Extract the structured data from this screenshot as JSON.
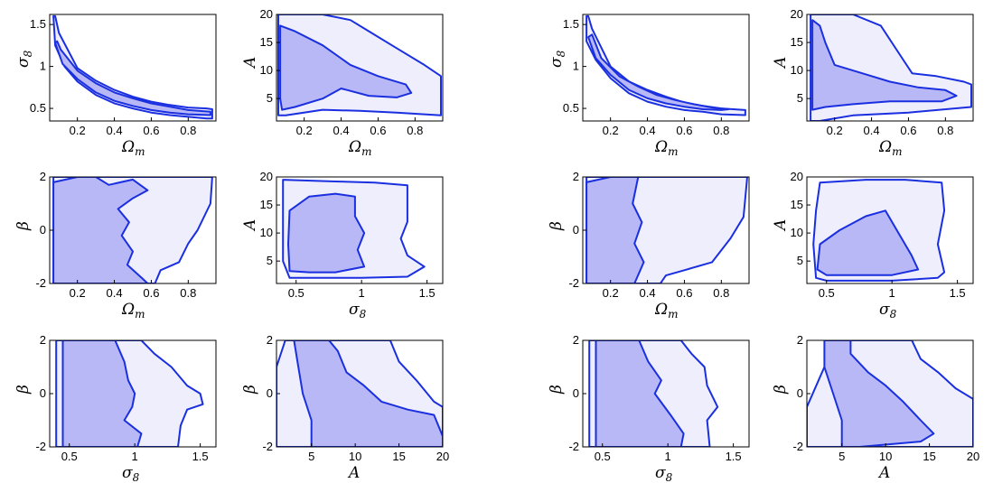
{
  "colors": {
    "outer_fill": "#eeeefc",
    "inner_fill": "#b8b8f6",
    "contour_line": "#1a2fe0"
  },
  "axes": {
    "Om": {
      "label": "Ω_m",
      "range": [
        0.05,
        0.95
      ],
      "ticks": [
        0.2,
        0.4,
        0.6,
        0.8
      ],
      "tick_labels": [
        "0.2",
        "0.4",
        "0.6",
        "0.8"
      ]
    },
    "s8": {
      "label": "σ_8",
      "range": [
        0.35,
        1.62
      ],
      "ticks": [
        0.5,
        1,
        1.5
      ],
      "tick_labels": [
        "0.5",
        "1",
        "1.5"
      ]
    },
    "A": {
      "label": "A",
      "range": [
        1,
        20
      ],
      "ticks": [
        5,
        10,
        15,
        20
      ],
      "tick_labels": [
        "5",
        "10",
        "15",
        "20"
      ]
    },
    "b": {
      "label": "β",
      "range": [
        -2,
        2
      ],
      "ticks": [
        -2,
        0,
        2
      ],
      "tick_labels": [
        "-2",
        "0",
        "2"
      ]
    }
  },
  "chart_data": [
    {
      "type": "area",
      "panel": "left",
      "x": "Om",
      "y": "s8",
      "outer": [
        [
          0.07,
          1.6
        ],
        [
          0.08,
          1.6
        ],
        [
          0.1,
          1.4
        ],
        [
          0.2,
          0.98
        ],
        [
          0.3,
          0.83
        ],
        [
          0.4,
          0.72
        ],
        [
          0.5,
          0.64
        ],
        [
          0.6,
          0.58
        ],
        [
          0.7,
          0.54
        ],
        [
          0.8,
          0.51
        ],
        [
          0.9,
          0.5
        ],
        [
          0.93,
          0.49
        ],
        [
          0.93,
          0.38
        ],
        [
          0.9,
          0.38
        ],
        [
          0.8,
          0.4
        ],
        [
          0.7,
          0.42
        ],
        [
          0.6,
          0.45
        ],
        [
          0.5,
          0.5
        ],
        [
          0.4,
          0.56
        ],
        [
          0.3,
          0.66
        ],
        [
          0.2,
          0.82
        ],
        [
          0.13,
          1.0
        ],
        [
          0.08,
          1.25
        ],
        [
          0.07,
          1.6
        ]
      ],
      "inner": [
        [
          0.08,
          1.28
        ],
        [
          0.09,
          1.3
        ],
        [
          0.11,
          1.2
        ],
        [
          0.2,
          0.95
        ],
        [
          0.3,
          0.8
        ],
        [
          0.4,
          0.69
        ],
        [
          0.5,
          0.62
        ],
        [
          0.6,
          0.56
        ],
        [
          0.7,
          0.52
        ],
        [
          0.8,
          0.48
        ],
        [
          0.92,
          0.46
        ],
        [
          0.92,
          0.42
        ],
        [
          0.8,
          0.43
        ],
        [
          0.7,
          0.45
        ],
        [
          0.6,
          0.48
        ],
        [
          0.5,
          0.53
        ],
        [
          0.4,
          0.59
        ],
        [
          0.3,
          0.69
        ],
        [
          0.2,
          0.85
        ],
        [
          0.12,
          1.03
        ],
        [
          0.08,
          1.28
        ]
      ]
    },
    {
      "type": "area",
      "panel": "left",
      "x": "Om",
      "y": "A",
      "outer": [
        [
          0.06,
          20
        ],
        [
          0.3,
          20
        ],
        [
          0.45,
          19
        ],
        [
          0.55,
          17
        ],
        [
          0.7,
          14
        ],
        [
          0.85,
          11
        ],
        [
          0.94,
          9
        ],
        [
          0.94,
          2
        ],
        [
          0.7,
          2.5
        ],
        [
          0.5,
          2.8
        ],
        [
          0.3,
          3
        ],
        [
          0.1,
          2
        ],
        [
          0.06,
          2
        ]
      ],
      "inner": [
        [
          0.07,
          18
        ],
        [
          0.15,
          17
        ],
        [
          0.3,
          14.5
        ],
        [
          0.45,
          11
        ],
        [
          0.6,
          9
        ],
        [
          0.75,
          7.5
        ],
        [
          0.78,
          6
        ],
        [
          0.7,
          5.2
        ],
        [
          0.55,
          5.5
        ],
        [
          0.4,
          6.8
        ],
        [
          0.3,
          5
        ],
        [
          0.15,
          3.5
        ],
        [
          0.08,
          3
        ],
        [
          0.07,
          5
        ]
      ]
    },
    {
      "type": "area",
      "panel": "left",
      "x": "Om",
      "y": "b",
      "outer": [
        [
          0.07,
          -2
        ],
        [
          0.07,
          2
        ],
        [
          0.93,
          2
        ],
        [
          0.92,
          1
        ],
        [
          0.85,
          0
        ],
        [
          0.8,
          -0.5
        ],
        [
          0.75,
          -1.2
        ],
        [
          0.65,
          -1.5
        ],
        [
          0.62,
          -2
        ]
      ],
      "inner": [
        [
          0.07,
          -2
        ],
        [
          0.07,
          1.8
        ],
        [
          0.2,
          2
        ],
        [
          0.3,
          2
        ],
        [
          0.37,
          1.7
        ],
        [
          0.5,
          1.9
        ],
        [
          0.58,
          1.5
        ],
        [
          0.5,
          1.2
        ],
        [
          0.42,
          0.8
        ],
        [
          0.48,
          0.3
        ],
        [
          0.44,
          -0.2
        ],
        [
          0.5,
          -0.8
        ],
        [
          0.47,
          -1.3
        ],
        [
          0.55,
          -1.8
        ],
        [
          0.58,
          -2
        ]
      ]
    },
    {
      "type": "area",
      "panel": "left",
      "x": "s8",
      "y": "A",
      "outer": [
        [
          0.4,
          19.5
        ],
        [
          0.8,
          19.2
        ],
        [
          1.1,
          19
        ],
        [
          1.35,
          18.5
        ],
        [
          1.35,
          12
        ],
        [
          1.3,
          9
        ],
        [
          1.35,
          6
        ],
        [
          1.48,
          4
        ],
        [
          1.35,
          2.2
        ],
        [
          1,
          2
        ],
        [
          0.6,
          2
        ],
        [
          0.45,
          2
        ],
        [
          0.4,
          5
        ],
        [
          0.4,
          12
        ]
      ],
      "inner": [
        [
          0.45,
          14
        ],
        [
          0.6,
          16.5
        ],
        [
          0.8,
          17
        ],
        [
          0.95,
          16.5
        ],
        [
          0.95,
          13
        ],
        [
          1.02,
          10
        ],
        [
          0.97,
          7
        ],
        [
          1.02,
          4
        ],
        [
          0.8,
          3
        ],
        [
          0.6,
          3
        ],
        [
          0.45,
          3.2
        ],
        [
          0.44,
          8
        ]
      ]
    },
    {
      "type": "area",
      "panel": "left",
      "x": "s8",
      "y": "b",
      "outer": [
        [
          0.4,
          -2
        ],
        [
          0.4,
          2
        ],
        [
          1.05,
          2
        ],
        [
          1.15,
          1.5
        ],
        [
          1.28,
          1
        ],
        [
          1.4,
          0.3
        ],
        [
          1.5,
          0
        ],
        [
          1.52,
          -0.4
        ],
        [
          1.4,
          -0.6
        ],
        [
          1.35,
          -1.2
        ],
        [
          1.33,
          -2
        ]
      ],
      "inner": [
        [
          0.45,
          -2
        ],
        [
          0.45,
          2
        ],
        [
          0.85,
          2
        ],
        [
          0.92,
          1.2
        ],
        [
          0.95,
          0.5
        ],
        [
          1,
          0
        ],
        [
          0.98,
          -0.5
        ],
        [
          0.92,
          -1
        ],
        [
          1.05,
          -1.5
        ],
        [
          1.02,
          -2
        ]
      ]
    },
    {
      "type": "area",
      "panel": "left",
      "x": "A",
      "y": "b",
      "outer": [
        [
          1,
          -2
        ],
        [
          1,
          1
        ],
        [
          2,
          2
        ],
        [
          14,
          2
        ],
        [
          15,
          1.2
        ],
        [
          17,
          0.5
        ],
        [
          19,
          -0.3
        ],
        [
          20,
          -0.5
        ],
        [
          20,
          -2
        ]
      ],
      "inner": [
        [
          3,
          2
        ],
        [
          7,
          2
        ],
        [
          8,
          1.6
        ],
        [
          9,
          0.8
        ],
        [
          11,
          0.3
        ],
        [
          13,
          -0.3
        ],
        [
          16,
          -0.6
        ],
        [
          19,
          -0.8
        ],
        [
          20,
          -1.6
        ],
        [
          20,
          -2
        ],
        [
          5,
          -2
        ],
        [
          5,
          -1
        ],
        [
          4,
          0
        ],
        [
          3.5,
          1
        ]
      ]
    },
    {
      "type": "area",
      "panel": "right",
      "x": "Om",
      "y": "s8",
      "outer": [
        [
          0.07,
          1.6
        ],
        [
          0.08,
          1.6
        ],
        [
          0.1,
          1.45
        ],
        [
          0.2,
          1.0
        ],
        [
          0.3,
          0.82
        ],
        [
          0.4,
          0.72
        ],
        [
          0.5,
          0.64
        ],
        [
          0.6,
          0.57
        ],
        [
          0.7,
          0.53
        ],
        [
          0.8,
          0.5
        ],
        [
          0.93,
          0.48
        ],
        [
          0.93,
          0.42
        ],
        [
          0.8,
          0.43
        ],
        [
          0.7,
          0.46
        ],
        [
          0.6,
          0.48
        ],
        [
          0.5,
          0.52
        ],
        [
          0.4,
          0.58
        ],
        [
          0.3,
          0.68
        ],
        [
          0.2,
          0.86
        ],
        [
          0.12,
          1.08
        ],
        [
          0.07,
          1.3
        ],
        [
          0.07,
          1.6
        ]
      ],
      "inner": [
        [
          0.08,
          1.35
        ],
        [
          0.1,
          1.38
        ],
        [
          0.15,
          1.1
        ],
        [
          0.25,
          0.88
        ],
        [
          0.35,
          0.76
        ],
        [
          0.45,
          0.66
        ],
        [
          0.55,
          0.6
        ],
        [
          0.65,
          0.55
        ],
        [
          0.75,
          0.51
        ],
        [
          0.84,
          0.49
        ],
        [
          0.8,
          0.48
        ],
        [
          0.7,
          0.49
        ],
        [
          0.6,
          0.52
        ],
        [
          0.5,
          0.56
        ],
        [
          0.4,
          0.62
        ],
        [
          0.3,
          0.72
        ],
        [
          0.2,
          0.9
        ],
        [
          0.12,
          1.1
        ],
        [
          0.08,
          1.35
        ]
      ]
    },
    {
      "type": "area",
      "panel": "right",
      "x": "Om",
      "y": "A",
      "outer": [
        [
          0.07,
          20
        ],
        [
          0.3,
          20
        ],
        [
          0.45,
          18
        ],
        [
          0.55,
          13
        ],
        [
          0.62,
          9.5
        ],
        [
          0.75,
          9
        ],
        [
          0.9,
          8
        ],
        [
          0.94,
          7.5
        ],
        [
          0.94,
          3.5
        ],
        [
          0.6,
          2.5
        ],
        [
          0.3,
          2
        ],
        [
          0.12,
          1
        ],
        [
          0.07,
          1
        ]
      ],
      "inner": [
        [
          0.08,
          19
        ],
        [
          0.12,
          18
        ],
        [
          0.15,
          15
        ],
        [
          0.2,
          11
        ],
        [
          0.35,
          9.5
        ],
        [
          0.5,
          8
        ],
        [
          0.65,
          7
        ],
        [
          0.8,
          6.5
        ],
        [
          0.86,
          5.5
        ],
        [
          0.78,
          4.5
        ],
        [
          0.5,
          4.5
        ],
        [
          0.3,
          4
        ],
        [
          0.15,
          3.5
        ],
        [
          0.08,
          3
        ]
      ]
    },
    {
      "type": "area",
      "panel": "right",
      "x": "Om",
      "y": "b",
      "outer": [
        [
          0.07,
          -2
        ],
        [
          0.07,
          2
        ],
        [
          0.94,
          2
        ],
        [
          0.92,
          0.5
        ],
        [
          0.85,
          -0.3
        ],
        [
          0.75,
          -1.2
        ],
        [
          0.6,
          -1.5
        ],
        [
          0.5,
          -1.7
        ],
        [
          0.47,
          -2
        ]
      ],
      "inner": [
        [
          0.07,
          -2
        ],
        [
          0.07,
          1.8
        ],
        [
          0.2,
          2
        ],
        [
          0.35,
          2
        ],
        [
          0.32,
          1
        ],
        [
          0.37,
          0.3
        ],
        [
          0.33,
          -0.5
        ],
        [
          0.38,
          -1.2
        ],
        [
          0.33,
          -2
        ]
      ]
    },
    {
      "type": "area",
      "panel": "right",
      "x": "s8",
      "y": "A",
      "outer": [
        [
          0.45,
          19
        ],
        [
          0.8,
          19.5
        ],
        [
          1.1,
          19.5
        ],
        [
          1.38,
          19
        ],
        [
          1.4,
          14
        ],
        [
          1.35,
          8
        ],
        [
          1.4,
          3
        ],
        [
          1.35,
          2
        ],
        [
          1,
          1.5
        ],
        [
          0.5,
          1.5
        ],
        [
          0.42,
          2
        ],
        [
          0.4,
          8
        ],
        [
          0.42,
          14
        ]
      ],
      "inner": [
        [
          0.45,
          8
        ],
        [
          0.6,
          10.5
        ],
        [
          0.8,
          13
        ],
        [
          0.95,
          14
        ],
        [
          1.05,
          10
        ],
        [
          1.15,
          6
        ],
        [
          1.2,
          3.5
        ],
        [
          1,
          2.5
        ],
        [
          0.7,
          2.5
        ],
        [
          0.5,
          2.5
        ],
        [
          0.43,
          3.5
        ]
      ]
    },
    {
      "type": "area",
      "panel": "right",
      "x": "s8",
      "y": "b",
      "outer": [
        [
          0.4,
          -2
        ],
        [
          0.4,
          2
        ],
        [
          1.1,
          2
        ],
        [
          1.18,
          1.5
        ],
        [
          1.28,
          1
        ],
        [
          1.3,
          0.3
        ],
        [
          1.38,
          -0.5
        ],
        [
          1.3,
          -1
        ],
        [
          1.32,
          -2
        ]
      ],
      "inner": [
        [
          0.45,
          -2
        ],
        [
          0.45,
          2
        ],
        [
          0.78,
          2
        ],
        [
          0.85,
          1.2
        ],
        [
          0.95,
          0.5
        ],
        [
          0.9,
          0
        ],
        [
          1.02,
          -0.8
        ],
        [
          1.12,
          -1.5
        ],
        [
          1.1,
          -2
        ]
      ]
    },
    {
      "type": "area",
      "panel": "right",
      "x": "A",
      "y": "b",
      "outer": [
        [
          1,
          -2
        ],
        [
          1,
          -0.5
        ],
        [
          3,
          1
        ],
        [
          4,
          2
        ],
        [
          13,
          2
        ],
        [
          14,
          1.3
        ],
        [
          16,
          0.8
        ],
        [
          18,
          0.2
        ],
        [
          20,
          -0.2
        ],
        [
          20,
          -2
        ]
      ],
      "inner": [
        [
          3,
          2
        ],
        [
          6,
          2
        ],
        [
          6,
          1.5
        ],
        [
          8,
          0.8
        ],
        [
          10,
          0.3
        ],
        [
          12,
          -0.3
        ],
        [
          14,
          -1
        ],
        [
          15.5,
          -1.5
        ],
        [
          14,
          -1.8
        ],
        [
          7,
          -2
        ],
        [
          5,
          -2
        ],
        [
          5,
          -1
        ],
        [
          4,
          0
        ],
        [
          3,
          1
        ]
      ]
    }
  ]
}
